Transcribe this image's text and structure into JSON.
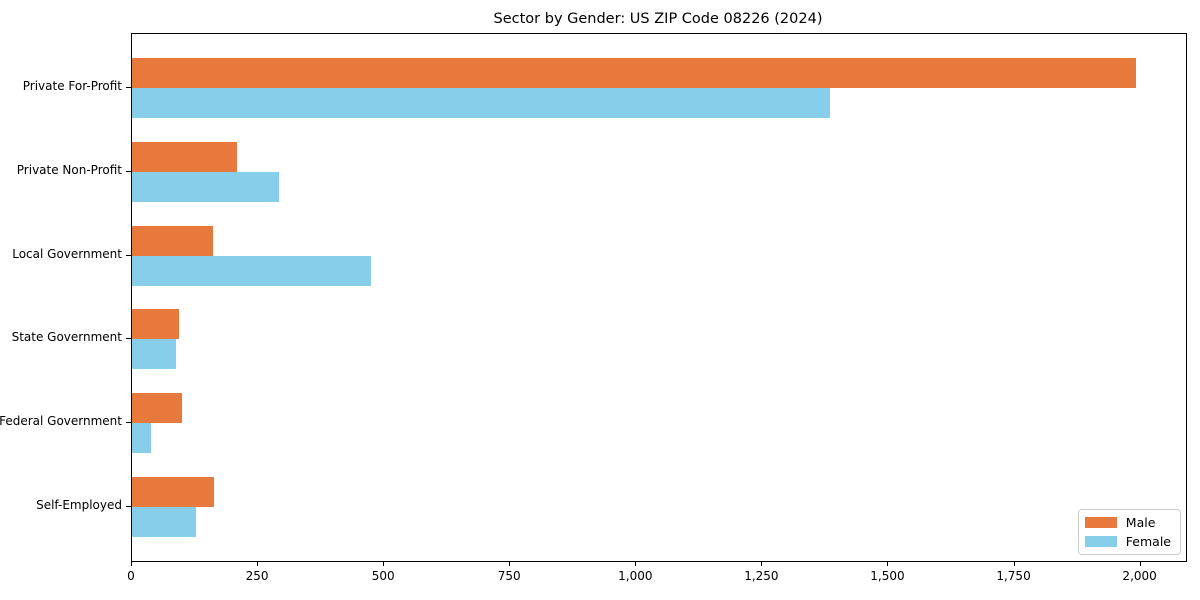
{
  "title": "Sector by Gender: US ZIP Code 08226 (2024)",
  "chart_data": {
    "type": "bar",
    "orientation": "horizontal",
    "title": "Sector by Gender: US ZIP Code 08226 (2024)",
    "categories": [
      "Private For-Profit",
      "Private Non-Profit",
      "Local Government",
      "State Government",
      "Federal Government",
      "Self-Employed"
    ],
    "series": [
      {
        "name": "Male",
        "color": "#E8793D",
        "values": [
          1990,
          208,
          160,
          93,
          99,
          162
        ]
      },
      {
        "name": "Female",
        "color": "#87CEEB",
        "values": [
          1384,
          292,
          473,
          87,
          38,
          127
        ]
      }
    ],
    "xlabel": "",
    "ylabel": "",
    "xlim": [
      0,
      2090
    ],
    "xticks": [
      0,
      250,
      500,
      750,
      1000,
      1250,
      1500,
      1750,
      2000
    ],
    "xtick_labels": [
      "0",
      "250",
      "500",
      "750",
      "1,000",
      "1,250",
      "1,500",
      "1,750",
      "2,000"
    ],
    "grid": false,
    "legend_position": "lower right"
  },
  "legend": {
    "items": [
      {
        "label": "Male",
        "color": "#E8793D"
      },
      {
        "label": "Female",
        "color": "#87CEEB"
      }
    ]
  }
}
